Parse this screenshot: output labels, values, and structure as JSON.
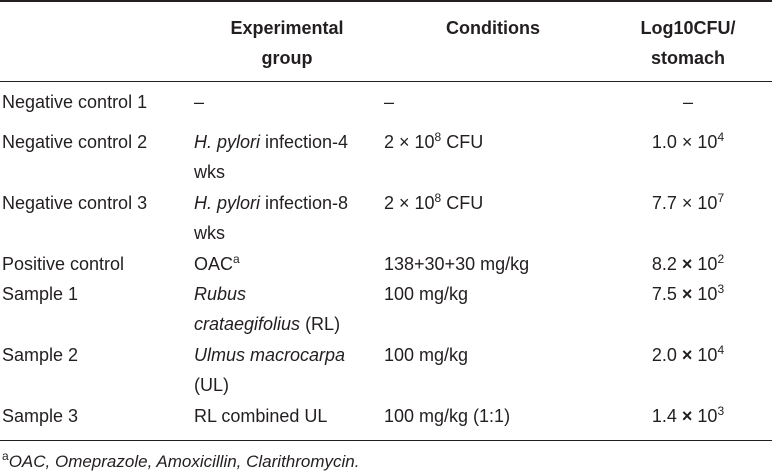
{
  "table": {
    "header": [
      [
        [
          "Experimental"
        ],
        [
          "group"
        ]
      ],
      [
        [
          "Conditions"
        ]
      ],
      [
        [
          "Log10CFU/"
        ],
        [
          "stomach"
        ]
      ]
    ],
    "rows": [
      {
        "group": "Negative control 1",
        "cells": [
          [
            [
              {
                "t": "–"
              }
            ]
          ],
          [
            [
              {
                "t": "–"
              }
            ]
          ],
          [
            [
              {
                "t": "–"
              }
            ]
          ]
        ]
      },
      {
        "group": "Negative control 2",
        "cells": [
          [
            [
              {
                "i": "H. pylori"
              },
              {
                "t": " infection-4"
              }
            ],
            [
              {
                "t": "wks"
              }
            ]
          ],
          [
            [
              {
                "t": "2 × 10"
              },
              {
                "sup": "8"
              },
              {
                "t": " CFU"
              }
            ]
          ],
          [
            [
              {
                "t": "1.0 × 10"
              },
              {
                "sup": "4"
              }
            ]
          ]
        ]
      },
      {
        "group": "Negative control 3",
        "cells": [
          [
            [
              {
                "i": "H. pylori"
              },
              {
                "t": " infection-8"
              }
            ],
            [
              {
                "t": "wks"
              }
            ]
          ],
          [
            [
              {
                "t": "2 × 10"
              },
              {
                "sup": "8"
              },
              {
                "t": " CFU"
              }
            ]
          ],
          [
            [
              {
                "t": "7.7 × 10"
              },
              {
                "sup": "7"
              }
            ]
          ]
        ]
      },
      {
        "group": "Positive control",
        "cells": [
          [
            [
              {
                "t": "OAC"
              },
              {
                "sup": "a"
              }
            ]
          ],
          [
            [
              {
                "t": "138+30+30 mg/kg"
              }
            ]
          ],
          [
            [
              {
                "t": "8.2 "
              },
              {
                "b": "×"
              },
              {
                "t": " 10"
              },
              {
                "sup": "2"
              }
            ]
          ]
        ]
      },
      {
        "group": "Sample 1",
        "cells": [
          [
            [
              {
                "i": "Rubus"
              }
            ],
            [
              {
                "i": "crataegifolius"
              },
              {
                "t": " (RL)"
              }
            ]
          ],
          [
            [
              {
                "t": "100 mg/kg"
              }
            ]
          ],
          [
            [
              {
                "t": "7.5 "
              },
              {
                "b": "×"
              },
              {
                "t": " 10"
              },
              {
                "sup": "3"
              }
            ]
          ]
        ]
      },
      {
        "group": "Sample 2",
        "cells": [
          [
            [
              {
                "i": "Ulmus macrocarpa"
              }
            ],
            [
              {
                "t": "(UL)"
              }
            ]
          ],
          [
            [
              {
                "t": "100 mg/kg"
              }
            ]
          ],
          [
            [
              {
                "t": "2.0 "
              },
              {
                "b": "×"
              },
              {
                "t": " 10"
              },
              {
                "sup": "4"
              }
            ]
          ]
        ]
      },
      {
        "group": "Sample 3",
        "cells": [
          [
            [
              {
                "t": "RL combined UL"
              }
            ]
          ],
          [
            [
              {
                "t": "100 mg/kg (1:1)"
              }
            ]
          ],
          [
            [
              {
                "t": "1.4 "
              },
              {
                "b": "×"
              },
              {
                "t": " 10"
              },
              {
                "sup": "3"
              }
            ]
          ]
        ]
      }
    ],
    "footnote": [
      {
        "sup": "a"
      },
      {
        "i": "OAC, Omeprazole, Amoxicillin, Clarithromycin."
      }
    ]
  }
}
